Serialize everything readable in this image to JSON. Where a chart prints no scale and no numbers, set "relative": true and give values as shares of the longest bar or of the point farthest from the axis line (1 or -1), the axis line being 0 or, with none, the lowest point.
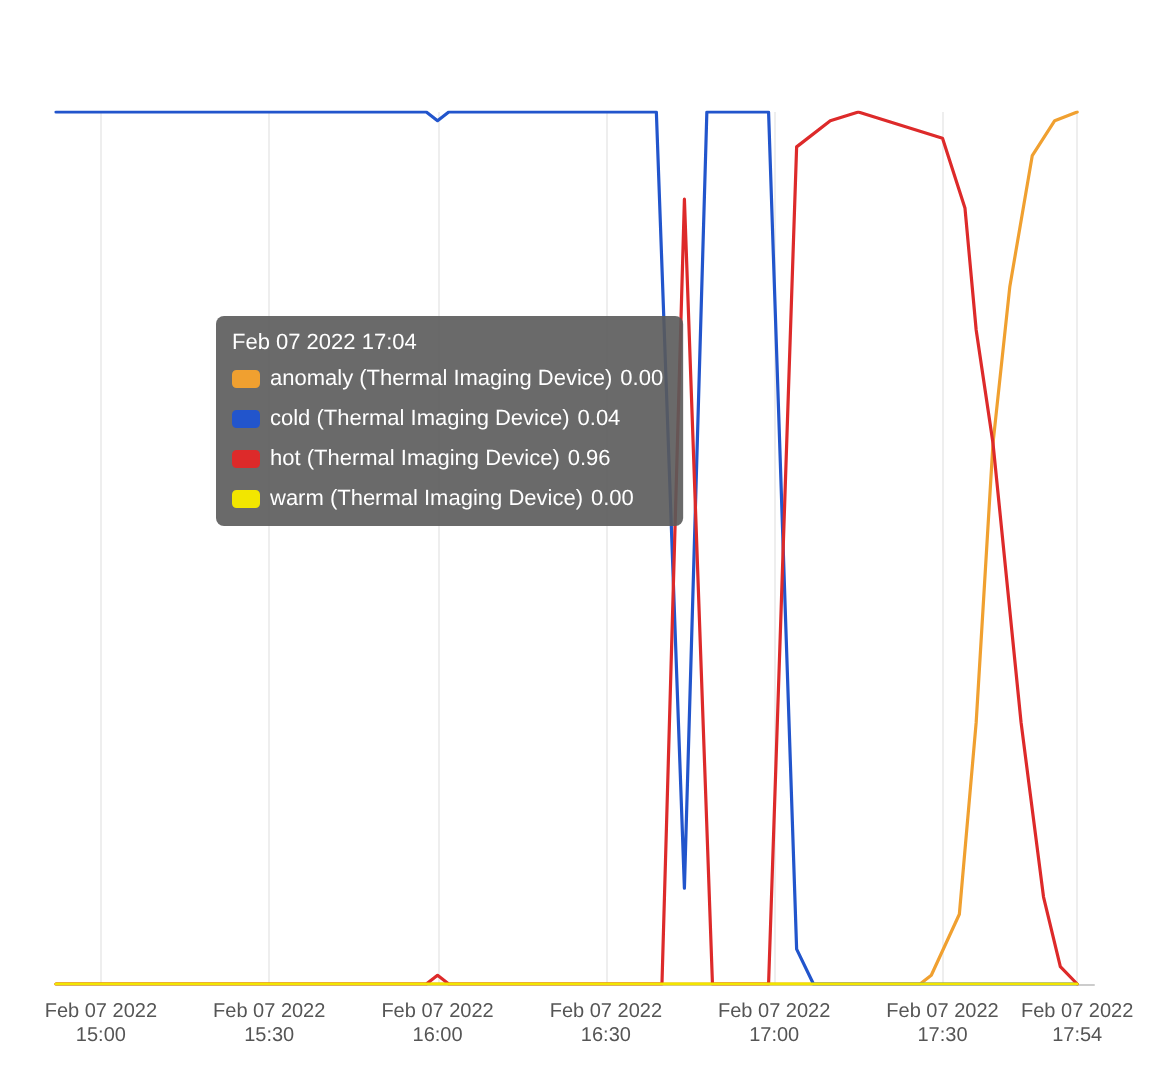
{
  "chart_data": {
    "type": "line",
    "relative": true,
    "legend": "top left",
    "legend_title": "Feb 07 2022 17:04",
    "grid": "x",
    "marker": "none",
    "line_style": "solid",
    "xlim": [
      "2022-02-07T14:52",
      "2022-02-07T17:57"
    ],
    "xticks": [
      {
        "value": "2022-02-07T15:00",
        "label": "Feb 07 2022\n15:00"
      },
      {
        "value": "2022-02-07T15:30",
        "label": "Feb 07 2022\n15:30"
      },
      {
        "value": "2022-02-07T16:00",
        "label": "Feb 07 2022\n16:00"
      },
      {
        "value": "2022-02-07T16:30",
        "label": "Feb 07 2022\n16:30"
      },
      {
        "value": "2022-02-07T17:00",
        "label": "Feb 07 2022\n17:00"
      },
      {
        "value": "2022-02-07T17:30",
        "label": "Feb 07 2022\n17:30"
      },
      {
        "value": "2022-02-07T17:54",
        "label": "Feb 07 2022\n17:54"
      }
    ],
    "annotations": [
      "0.00",
      "0.04",
      "0.96",
      "0.00"
    ],
    "series": [
      {
        "name": "anomaly (Thermal Imaging Device)",
        "color": "#f0a030",
        "x": [
          "2022-02-07T14:52",
          "2022-02-07T17:26",
          "2022-02-07T17:28",
          "2022-02-07T17:33",
          "2022-02-07T17:36",
          "2022-02-07T17:39",
          "2022-02-07T17:42",
          "2022-02-07T17:46",
          "2022-02-07T17:50",
          "2022-02-07T17:54"
        ],
        "values": [
          0,
          0,
          0.01,
          0.08,
          0.3,
          0.62,
          0.8,
          0.95,
          0.99,
          1
        ]
      },
      {
        "name": "cold (Thermal Imaging Device)",
        "color": "#2255cc",
        "x": [
          "2022-02-07T14:52",
          "2022-02-07T15:58",
          "2022-02-07T16:00",
          "2022-02-07T16:02",
          "2022-02-07T16:39",
          "2022-02-07T16:44",
          "2022-02-07T16:48",
          "2022-02-07T16:59",
          "2022-02-07T17:04",
          "2022-02-07T17:07",
          "2022-02-07T17:54"
        ],
        "values": [
          1,
          1,
          0.99,
          1,
          1,
          0.11,
          1,
          1,
          0.04,
          0,
          0
        ]
      },
      {
        "name": "hot (Thermal Imaging Device)",
        "color": "#dd2a2a",
        "x": [
          "2022-02-07T14:52",
          "2022-02-07T15:58",
          "2022-02-07T16:00",
          "2022-02-07T16:02",
          "2022-02-07T16:40",
          "2022-02-07T16:44",
          "2022-02-07T16:49",
          "2022-02-07T16:59",
          "2022-02-07T17:04",
          "2022-02-07T17:10",
          "2022-02-07T17:15",
          "2022-02-07T17:25",
          "2022-02-07T17:30",
          "2022-02-07T17:34",
          "2022-02-07T17:36",
          "2022-02-07T17:39",
          "2022-02-07T17:44",
          "2022-02-07T17:48",
          "2022-02-07T17:51",
          "2022-02-07T17:54"
        ],
        "values": [
          0,
          0,
          0.01,
          0,
          0,
          0.9,
          0,
          0,
          0.96,
          0.99,
          1,
          0.98,
          0.97,
          0.89,
          0.75,
          0.62,
          0.3,
          0.1,
          0.02,
          0
        ]
      },
      {
        "name": "warm (Thermal Imaging Device)",
        "color": "#f2e600",
        "x": [
          "2022-02-07T14:52",
          "2022-02-07T17:54"
        ],
        "values": [
          0,
          0
        ]
      }
    ]
  }
}
